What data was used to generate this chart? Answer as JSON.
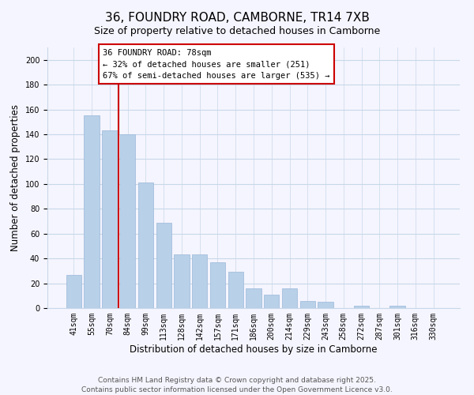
{
  "title": "36, FOUNDRY ROAD, CAMBORNE, TR14 7XB",
  "subtitle": "Size of property relative to detached houses in Camborne",
  "xlabel": "Distribution of detached houses by size in Camborne",
  "ylabel": "Number of detached properties",
  "categories": [
    "41sqm",
    "55sqm",
    "70sqm",
    "84sqm",
    "99sqm",
    "113sqm",
    "128sqm",
    "142sqm",
    "157sqm",
    "171sqm",
    "186sqm",
    "200sqm",
    "214sqm",
    "229sqm",
    "243sqm",
    "258sqm",
    "272sqm",
    "287sqm",
    "301sqm",
    "316sqm",
    "330sqm"
  ],
  "values": [
    27,
    155,
    143,
    140,
    101,
    69,
    43,
    43,
    37,
    29,
    16,
    11,
    16,
    6,
    5,
    0,
    2,
    0,
    2,
    0,
    0
  ],
  "bar_color": "#b8d0e8",
  "bar_edge_color": "#9ab8d8",
  "vline_x_idx": 2.5,
  "vline_color": "#cc0000",
  "ylim": [
    0,
    210
  ],
  "yticks": [
    0,
    20,
    40,
    60,
    80,
    100,
    120,
    140,
    160,
    180,
    200
  ],
  "annotation_title": "36 FOUNDRY ROAD: 78sqm",
  "annotation_line1": "← 32% of detached houses are smaller (251)",
  "annotation_line2": "67% of semi-detached houses are larger (535) →",
  "annotation_box_color": "#ffffff",
  "annotation_box_edge": "#cc0000",
  "footer_line1": "Contains HM Land Registry data © Crown copyright and database right 2025.",
  "footer_line2": "Contains public sector information licensed under the Open Government Licence v3.0.",
  "background_color": "#f5f5ff",
  "grid_color": "#c8d8e8",
  "title_fontsize": 11,
  "subtitle_fontsize": 9,
  "axis_label_fontsize": 8.5,
  "tick_fontsize": 7,
  "footer_fontsize": 6.5
}
